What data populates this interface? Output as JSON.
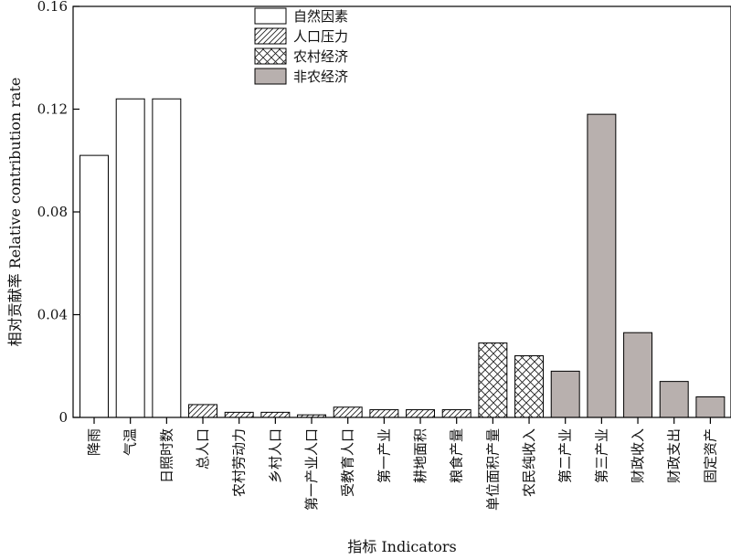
{
  "chart_data": {
    "type": "bar",
    "ylabel": "相对贡献率 Relative contribution rate",
    "xlabel": "指标 Indicators",
    "ylim": [
      0,
      0.16
    ],
    "yticks": [
      "0",
      "0.04",
      "0.08",
      "0.12",
      "0.16"
    ],
    "ytick_values": [
      0,
      0.04,
      0.08,
      0.12,
      0.16
    ],
    "grid": false,
    "legend_position": "top-center",
    "groups": [
      {
        "name": "自然因素",
        "pattern": "none",
        "fill": "#ffffff"
      },
      {
        "name": "人口压力",
        "pattern": "diagonal",
        "fill": "#ffffff"
      },
      {
        "name": "农村经济",
        "pattern": "crosshatch",
        "fill": "#ffffff"
      },
      {
        "name": "非农经济",
        "pattern": "none",
        "fill": "#b8b0ae"
      }
    ],
    "categories": [
      "降雨",
      "气温",
      "日照时数",
      "总人口",
      "农村劳动力",
      "乡村人口",
      "第一产业人口",
      "受教育人口",
      "第一产业",
      "耕地面积",
      "粮食产量",
      "单位面积产量",
      "农民纯收入",
      "第二产业",
      "第三产业",
      "财政收入",
      "财政支出",
      "固定资产"
    ],
    "values": [
      0.102,
      0.124,
      0.124,
      0.005,
      0.002,
      0.002,
      0.001,
      0.004,
      0.003,
      0.003,
      0.003,
      0.029,
      0.024,
      0.018,
      0.118,
      0.033,
      0.014,
      0.008
    ],
    "group_index": [
      0,
      0,
      0,
      1,
      1,
      1,
      1,
      1,
      1,
      1,
      1,
      2,
      2,
      3,
      3,
      3,
      3,
      3
    ]
  }
}
